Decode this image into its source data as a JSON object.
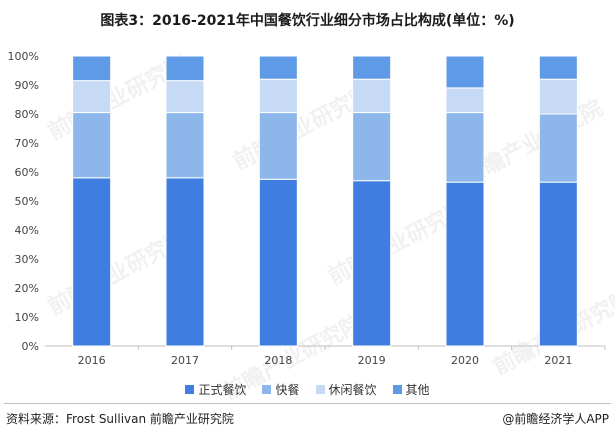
{
  "title": "图表3：2016-2021年中国餐饮行业细分市场占比构成(单位：%)",
  "source": "资料来源：Frost Sullivan 前瞻产业研究院",
  "credit": "@前瞻经济学人APP",
  "watermark": "前瞻产业研究院",
  "chart_data": {
    "type": "bar",
    "stacked": true,
    "categories": [
      "2016",
      "2017",
      "2018",
      "2019",
      "2020",
      "2021"
    ],
    "series": [
      {
        "name": "正式餐饮",
        "color": "#3f7ee0",
        "values": [
          58,
          58,
          57.5,
          57,
          56.5,
          56.5
        ]
      },
      {
        "name": "快餐",
        "color": "#8db7ea",
        "values": [
          22.5,
          22.5,
          23,
          23.5,
          24,
          23.5
        ]
      },
      {
        "name": "休闲餐饮",
        "color": "#c6daf5",
        "values": [
          11,
          11,
          11.5,
          11.5,
          8.5,
          12
        ]
      },
      {
        "name": "其他",
        "color": "#5f9ae6",
        "values": [
          8.5,
          8.5,
          8,
          8,
          11,
          8
        ]
      }
    ],
    "y_ticks": [
      "0%",
      "10%",
      "20%",
      "30%",
      "40%",
      "50%",
      "60%",
      "70%",
      "80%",
      "90%",
      "100%"
    ],
    "ylim": [
      0,
      100
    ],
    "legend_position": "bottom",
    "grid": false
  }
}
